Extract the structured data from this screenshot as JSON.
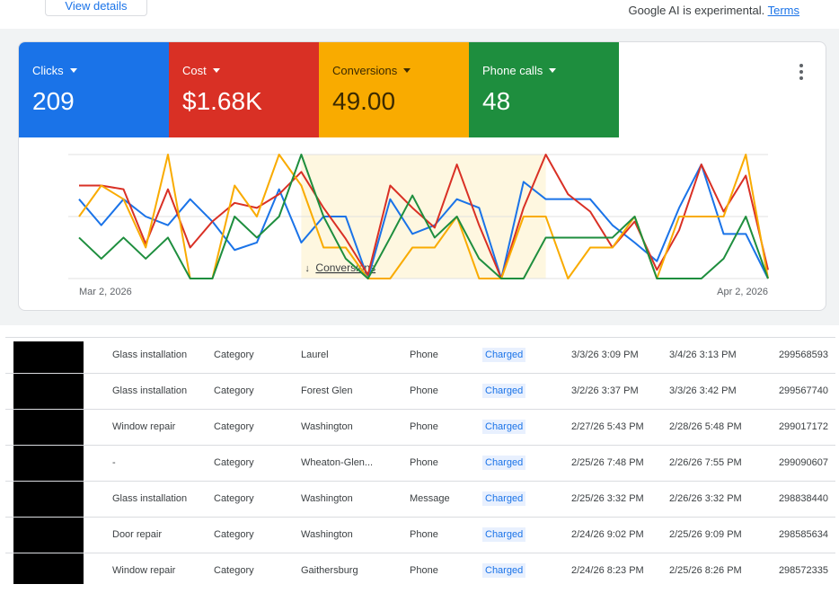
{
  "header": {
    "button": "View details",
    "notice": "Google AI is experimental.",
    "notice_link": "Terms"
  },
  "chart_data": {
    "type": "line",
    "categories": [
      "Mar 2, 2026",
      null,
      null,
      null,
      null,
      null,
      null,
      null,
      null,
      null,
      null,
      null,
      null,
      null,
      null,
      null,
      null,
      null,
      null,
      null,
      null,
      null,
      null,
      null,
      null,
      null,
      null,
      null,
      null,
      null,
      null,
      "Apr 2, 2026"
    ],
    "series": [
      {
        "name": "Clicks",
        "total": "209",
        "color": "#1a73e8",
        "values": [
          64,
          43,
          64,
          50,
          43,
          64,
          46,
          23,
          29,
          72,
          29,
          50,
          50,
          0,
          64,
          36,
          43,
          64,
          57,
          0,
          78,
          64,
          64,
          64,
          43,
          29,
          14,
          57,
          92,
          36,
          36,
          0
        ]
      },
      {
        "name": "Cost",
        "total": "$1.68K",
        "color": "#d93025",
        "values": [
          75,
          75,
          72,
          28,
          72,
          25,
          46,
          61,
          57,
          68,
          86,
          57,
          32,
          3,
          75,
          57,
          41,
          92,
          43,
          0,
          57,
          100,
          68,
          54,
          25,
          46,
          7,
          39,
          92,
          54,
          83,
          7
        ]
      },
      {
        "name": "Conversions",
        "total": "49.00",
        "color": "#f9ab00",
        "values": [
          50,
          75,
          64,
          25,
          100,
          0,
          0,
          75,
          50,
          100,
          75,
          25,
          25,
          0,
          0,
          25,
          25,
          50,
          0,
          0,
          50,
          50,
          0,
          25,
          25,
          50,
          0,
          50,
          50,
          50,
          100,
          0
        ]
      },
      {
        "name": "Phone calls",
        "total": "48",
        "color": "#1e8e3e",
        "values": [
          33,
          16,
          33,
          16,
          33,
          0,
          0,
          50,
          33,
          50,
          100,
          50,
          16,
          0,
          33,
          67,
          33,
          50,
          16,
          0,
          0,
          33,
          33,
          33,
          33,
          50,
          0,
          0,
          0,
          16,
          50,
          0
        ]
      }
    ],
    "ylim": [
      0,
      100
    ],
    "grid_lines": [
      0,
      50,
      100
    ],
    "grid": true,
    "highlight": {
      "label": "Conversions",
      "from": 10,
      "to": 21
    }
  },
  "table": {
    "rows": [
      [
        "Glass installation",
        "Category",
        "Laurel",
        "Phone",
        "Charged",
        "3/3/26 3:09 PM",
        "3/4/26 3:13 PM",
        "299568593"
      ],
      [
        "Glass installation",
        "Category",
        "Forest Glen",
        "Phone",
        "Charged",
        "3/2/26 3:37 PM",
        "3/3/26 3:42 PM",
        "299567740"
      ],
      [
        "Window repair",
        "Category",
        "Washington",
        "Phone",
        "Charged",
        "2/27/26 5:43 PM",
        "2/28/26 5:48 PM",
        "299017172"
      ],
      [
        "-",
        "Category",
        "Wheaton-Glen...",
        "Phone",
        "Charged",
        "2/25/26 7:48 PM",
        "2/26/26 7:55 PM",
        "299090607"
      ],
      [
        "Glass installation",
        "Category",
        "Washington",
        "Message",
        "Charged",
        "2/25/26 3:32 PM",
        "2/26/26 3:32 PM",
        "298838440"
      ],
      [
        "Door repair",
        "Category",
        "Washington",
        "Phone",
        "Charged",
        "2/24/26 9:02 PM",
        "2/25/26 9:09 PM",
        "298585634"
      ],
      [
        "Window repair",
        "Category",
        "Gaithersburg",
        "Phone",
        "Charged",
        "2/24/26 8:23 PM",
        "2/25/26 8:26 PM",
        "298572335"
      ]
    ]
  }
}
